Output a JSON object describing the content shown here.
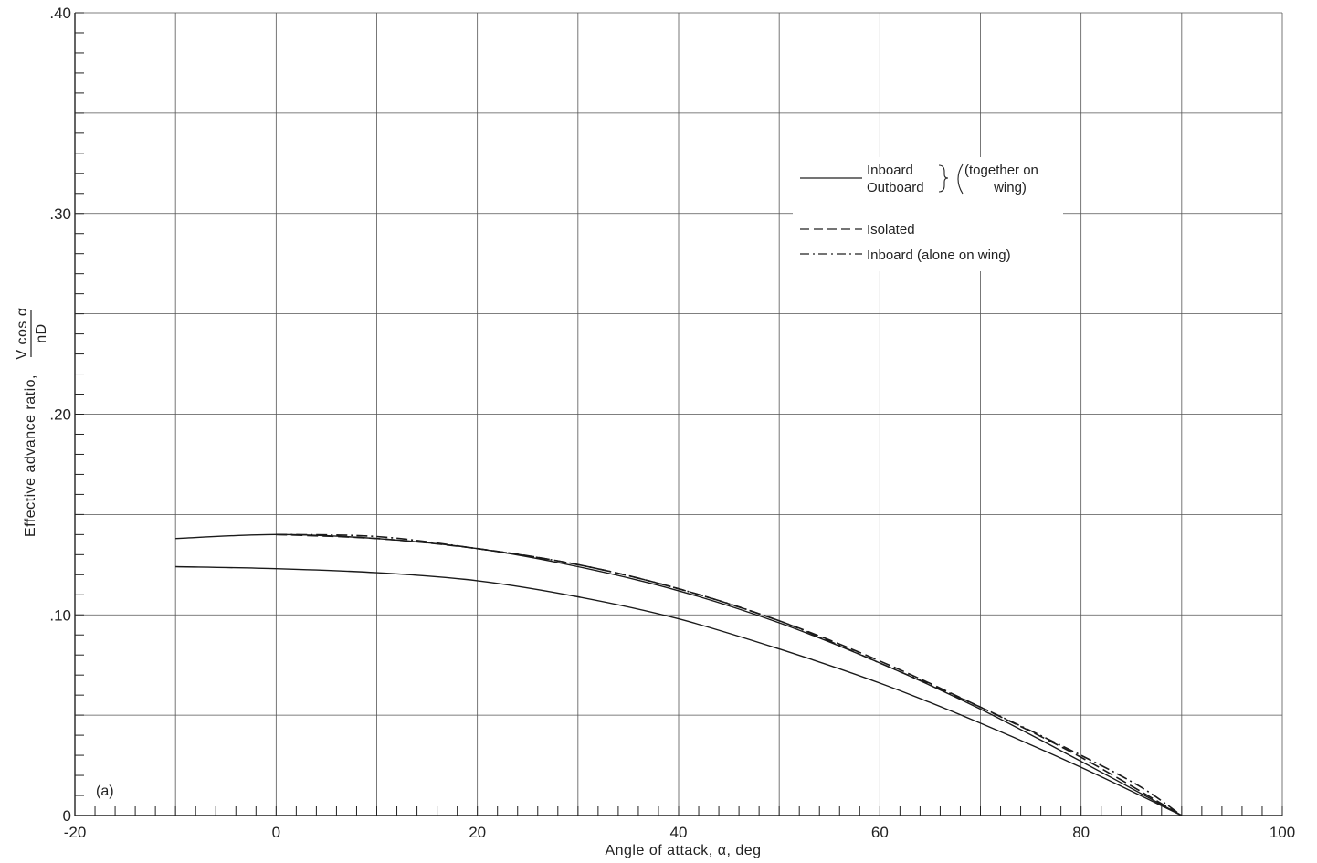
{
  "chart_data": {
    "type": "line",
    "panel_label": "(a)",
    "xlabel": "Angle of attack, α, deg",
    "ylabel_text": "Effective advance ratio,",
    "ylabel_fraction": {
      "numerator": "V cos α",
      "denominator": "nD"
    },
    "xlim": [
      -20,
      100
    ],
    "ylim": [
      0,
      0.4
    ],
    "x_ticks": [
      -20,
      0,
      20,
      40,
      60,
      80,
      100
    ],
    "x_tick_labels": [
      "-20",
      "0",
      "20",
      "40",
      "60",
      "80",
      "100"
    ],
    "y_ticks": [
      0,
      0.1,
      0.2,
      0.3,
      0.4
    ],
    "y_tick_labels": [
      "0",
      ".10",
      ".20",
      ".30",
      ".40"
    ],
    "grid": true,
    "legend": {
      "placement": "upper-right",
      "entries": [
        {
          "style": "solid",
          "lines": [
            "Inboard",
            "Outboard"
          ],
          "note": [
            "(together on",
            "wing)"
          ]
        },
        {
          "style": "dashed",
          "lines": [
            "Isolated"
          ]
        },
        {
          "style": "dash-dot",
          "lines": [
            "Inboard (alone on wing)"
          ]
        }
      ]
    },
    "series": [
      {
        "style": "solid",
        "x": [
          -10,
          0,
          10,
          20,
          30,
          40,
          50,
          60,
          70,
          80,
          90
        ],
        "y": [
          0.138,
          0.14,
          0.138,
          0.133,
          0.124,
          0.112,
          0.096,
          0.076,
          0.053,
          0.027,
          0.0
        ]
      },
      {
        "style": "solid",
        "x": [
          -10,
          0,
          10,
          20,
          30,
          40,
          50,
          60,
          70,
          80,
          90
        ],
        "y": [
          0.124,
          0.123,
          0.121,
          0.117,
          0.109,
          0.098,
          0.083,
          0.066,
          0.046,
          0.024,
          0.0
        ]
      },
      {
        "style": "dashed",
        "x": [
          0,
          10,
          20,
          30,
          40,
          50,
          60,
          70,
          80,
          90
        ],
        "y": [
          0.14,
          0.138,
          0.133,
          0.125,
          0.113,
          0.097,
          0.077,
          0.054,
          0.029,
          0.0
        ]
      },
      {
        "style": "dash-dot",
        "x": [
          0,
          10,
          20,
          30,
          40,
          50,
          60,
          70,
          80,
          86,
          90
        ],
        "y": [
          0.14,
          0.139,
          0.133,
          0.125,
          0.113,
          0.097,
          0.076,
          0.054,
          0.03,
          0.014,
          0.0
        ]
      }
    ]
  }
}
